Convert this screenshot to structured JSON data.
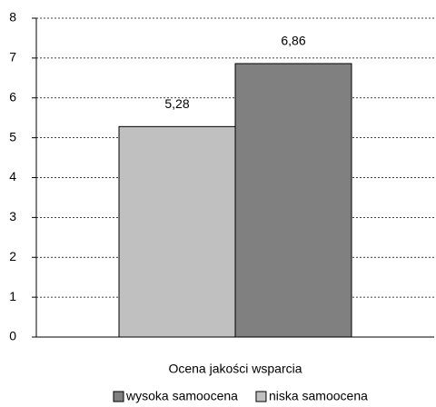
{
  "chart_data": {
    "type": "bar",
    "categories": [
      "Ocena jakości wsparcia"
    ],
    "series": [
      {
        "name": "niska samoocena",
        "color": "#c0c0c0",
        "values": [
          5.28
        ],
        "value_labels": [
          "5,28"
        ]
      },
      {
        "name": "wysoka samoocena",
        "color": "#808080",
        "values": [
          6.86
        ],
        "value_labels": [
          "6,86"
        ]
      }
    ],
    "ylim": [
      0,
      8
    ],
    "yticks": [
      0,
      1,
      2,
      3,
      4,
      5,
      6,
      7,
      8
    ],
    "grid": true
  }
}
